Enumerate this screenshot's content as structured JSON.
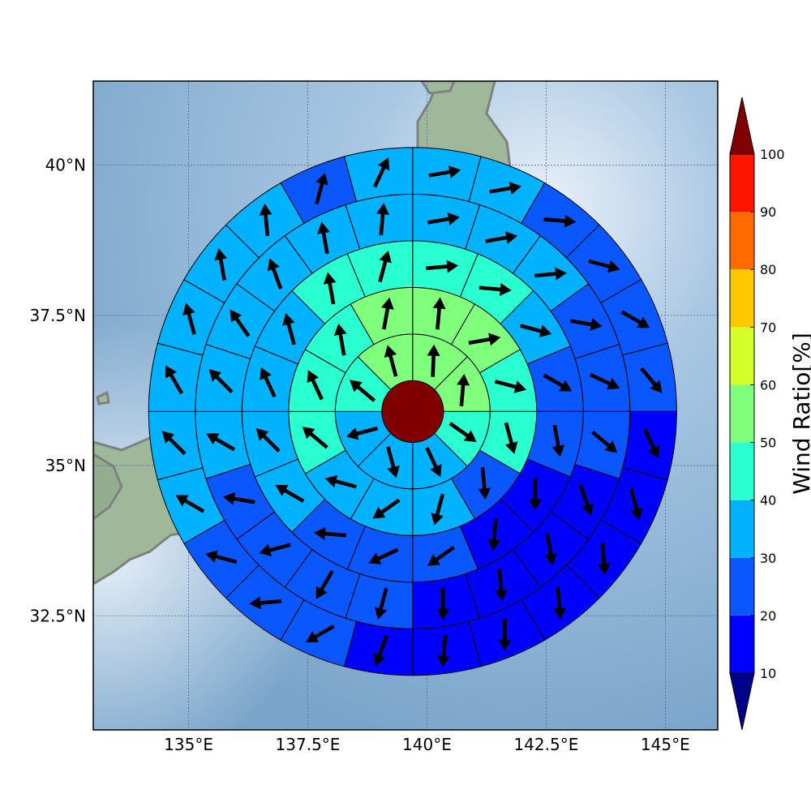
{
  "chart_data": {
    "type": "polar-sector-map",
    "projection": "map",
    "center": {
      "lon": 139.7,
      "lat": 35.9
    },
    "xlim": [
      133.0,
      146.1
    ],
    "ylim": [
      30.6,
      41.4
    ],
    "x_ticks": [
      {
        "value": 135.0,
        "label": "135°E"
      },
      {
        "value": 137.5,
        "label": "137.5°E"
      },
      {
        "value": 140.0,
        "label": "140°E"
      },
      {
        "value": 142.5,
        "label": "142.5°E"
      },
      {
        "value": 145.0,
        "label": "145°E"
      }
    ],
    "y_ticks": [
      {
        "value": 40.0,
        "label": "40°N"
      },
      {
        "value": 37.5,
        "label": "37.5°N"
      },
      {
        "value": 35.0,
        "label": "35°N"
      },
      {
        "value": 32.5,
        "label": "32.5°N"
      }
    ],
    "grid": true,
    "center_value": 100,
    "rings": [
      {
        "sectors": 8,
        "values": [
          55,
          55,
          45,
          35,
          35,
          35,
          45,
          55
        ],
        "arrows": [
          2,
          5,
          125,
          155,
          165,
          255,
          310,
          345
        ]
      },
      {
        "sectors": 12,
        "values": [
          55,
          55,
          45,
          45,
          25,
          35,
          35,
          35,
          45,
          45,
          45,
          55
        ],
        "arrows": [
          5,
          80,
          105,
          165,
          175,
          195,
          235,
          285,
          310,
          335,
          350,
          10
        ]
      },
      {
        "sectors": 16,
        "values": [
          45,
          45,
          35,
          25,
          25,
          15,
          15,
          25,
          25,
          25,
          35,
          35,
          35,
          35,
          45,
          45
        ],
        "arrows": [
          85,
          95,
          105,
          120,
          170,
          180,
          185,
          235,
          245,
          275,
          300,
          315,
          335,
          345,
          350,
          15
        ]
      },
      {
        "sectors": 20,
        "values": [
          35,
          35,
          35,
          25,
          25,
          25,
          15,
          15,
          15,
          15,
          25,
          25,
          25,
          25,
          35,
          35,
          35,
          35,
          35,
          35
        ],
        "arrows": [
          80,
          80,
          85,
          100,
          115,
          130,
          160,
          170,
          175,
          180,
          195,
          210,
          255,
          280,
          300,
          315,
          325,
          340,
          350,
          5
        ]
      },
      {
        "sectors": 24,
        "values": [
          35,
          35,
          25,
          25,
          25,
          25,
          15,
          15,
          15,
          15,
          15,
          15,
          15,
          25,
          25,
          25,
          35,
          35,
          35,
          35,
          35,
          35,
          25,
          35
        ],
        "arrows": [
          80,
          80,
          95,
          105,
          120,
          140,
          155,
          165,
          175,
          175,
          180,
          185,
          200,
          240,
          265,
          285,
          300,
          315,
          330,
          345,
          350,
          355,
          15,
          25
        ]
      }
    ],
    "colorbar": {
      "title": "Wind Ratio[%]",
      "ticks": [
        10,
        20,
        30,
        40,
        50,
        60,
        70,
        80,
        90,
        100
      ],
      "bins": [
        {
          "from": 10,
          "to": 20,
          "color": "#0000ff"
        },
        {
          "from": 20,
          "to": 30,
          "color": "#0a56ff"
        },
        {
          "from": 30,
          "to": 40,
          "color": "#00b2ff"
        },
        {
          "from": 40,
          "to": 50,
          "color": "#29ffd0"
        },
        {
          "from": 50,
          "to": 60,
          "color": "#7fff7b"
        },
        {
          "from": 60,
          "to": 70,
          "color": "#d4ff28"
        },
        {
          "from": 70,
          "to": 80,
          "color": "#ffc800"
        },
        {
          "from": 80,
          "to": 90,
          "color": "#ff6a00"
        },
        {
          "from": 90,
          "to": 100,
          "color": "#ff1400"
        }
      ],
      "under_color": "#00008b",
      "over_color": "#800000"
    }
  }
}
